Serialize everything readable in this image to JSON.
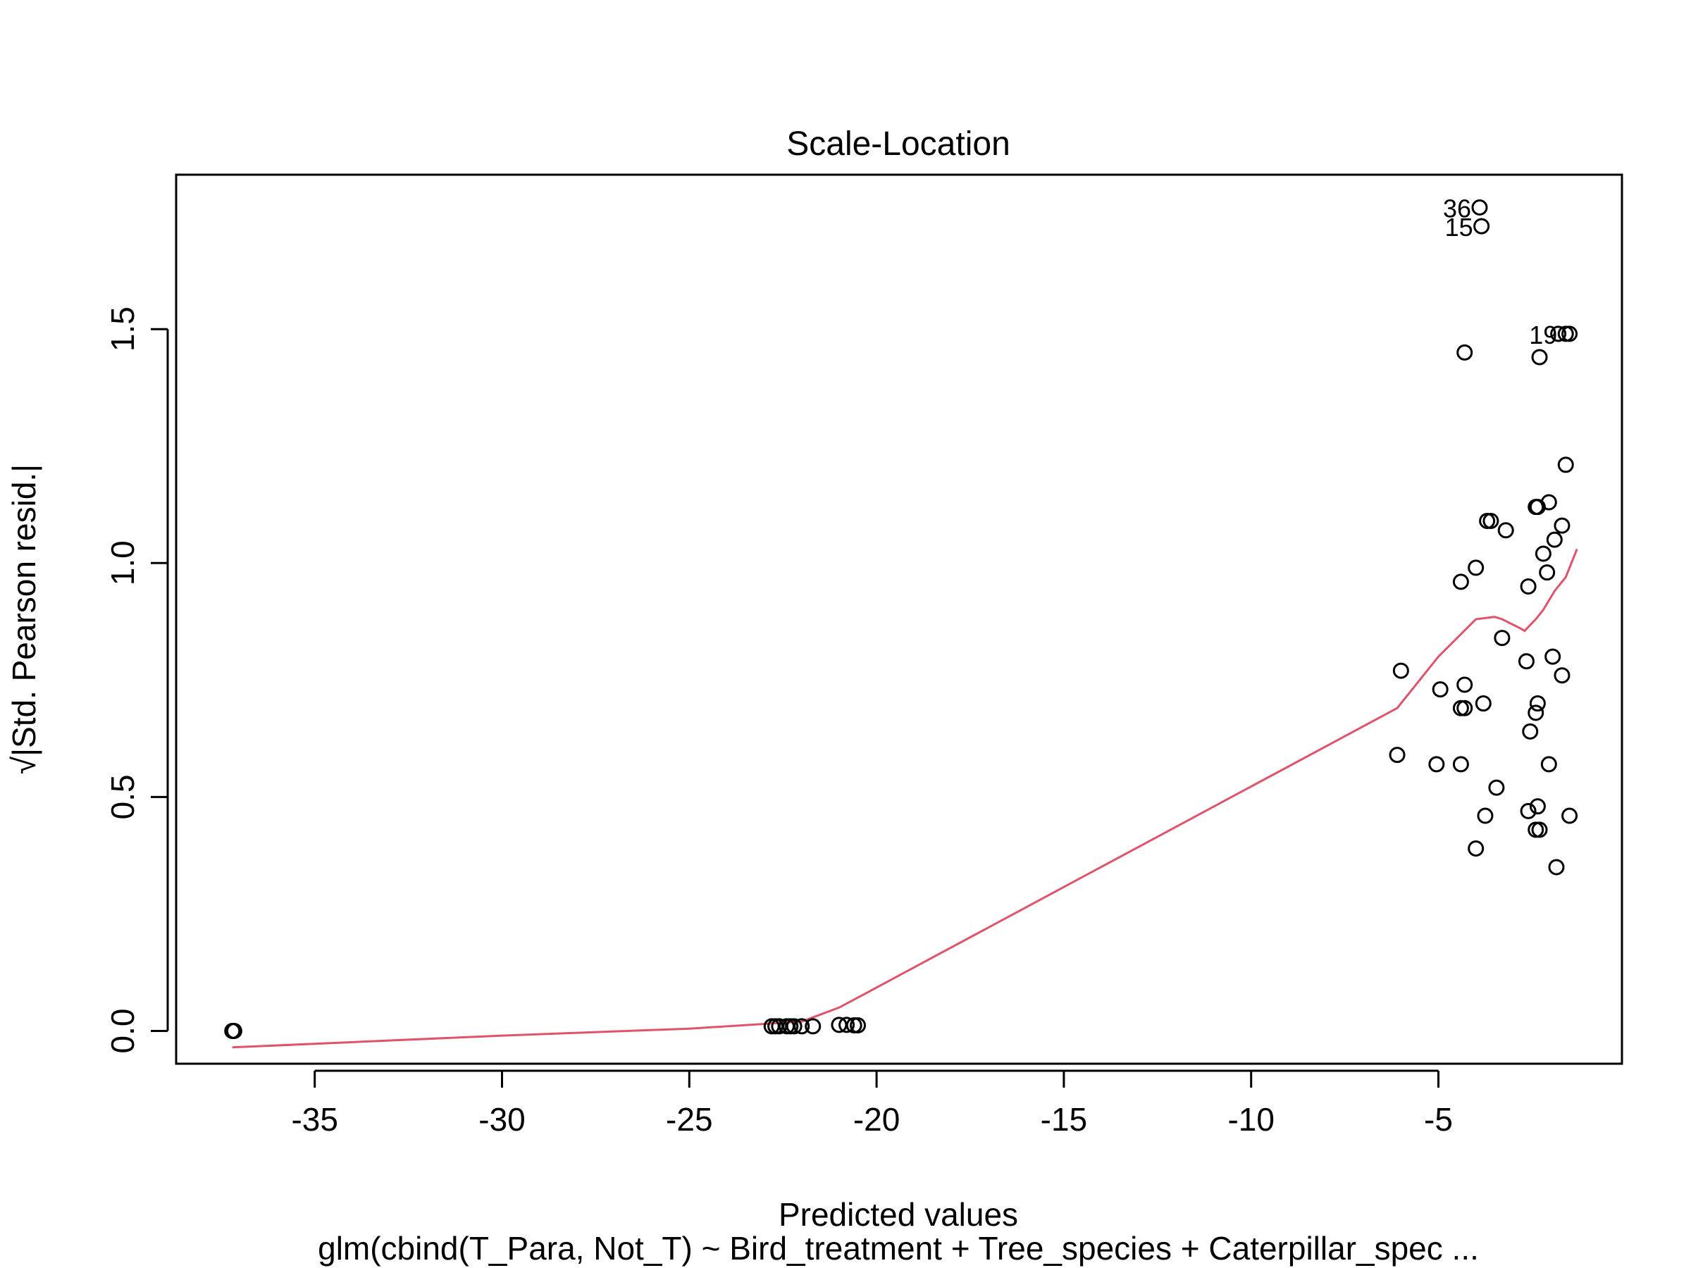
{
  "chart_data": {
    "type": "scatter",
    "title": "Scale-Location",
    "xlabel": "Predicted values",
    "ylabel": "√|Std. Pearson resid.|",
    "subtitle": "glm(cbind(T_Para, Not_T) ~ Bird_treatment + Tree_species + Caterpillar_spec ...",
    "xlim": [
      -38.7,
      -0.1
    ],
    "ylim": [
      -0.07,
      1.83
    ],
    "x_ticks": [
      -35,
      -30,
      -25,
      -20,
      -15,
      -10,
      -5
    ],
    "x_tick_labels": [
      "-35",
      "-30",
      "-25",
      "-20",
      "-15",
      "-10",
      "-5"
    ],
    "y_ticks": [
      0.0,
      0.5,
      1.0,
      1.5
    ],
    "y_tick_labels": [
      "0.0",
      "0.5",
      "1.0",
      "1.5"
    ],
    "grid": false,
    "legend": "none",
    "point_color": "#000000",
    "smooth_color": "#DF536B",
    "points": [
      {
        "x": -37.2,
        "y": 0.0
      },
      {
        "x": -37.15,
        "y": 0.0
      },
      {
        "x": -22.8,
        "y": 0.01
      },
      {
        "x": -22.7,
        "y": 0.01
      },
      {
        "x": -22.6,
        "y": 0.01
      },
      {
        "x": -22.4,
        "y": 0.01
      },
      {
        "x": -22.3,
        "y": 0.01
      },
      {
        "x": -22.2,
        "y": 0.01
      },
      {
        "x": -22.0,
        "y": 0.01
      },
      {
        "x": -21.7,
        "y": 0.01
      },
      {
        "x": -21.0,
        "y": 0.013
      },
      {
        "x": -20.8,
        "y": 0.013
      },
      {
        "x": -20.6,
        "y": 0.012
      },
      {
        "x": -20.5,
        "y": 0.012
      },
      {
        "x": -3.9,
        "y": 1.76,
        "label": "36"
      },
      {
        "x": -3.85,
        "y": 1.72,
        "label": "15"
      },
      {
        "x": -1.6,
        "y": 1.49,
        "label": "19"
      },
      {
        "x": -1.5,
        "y": 1.49
      },
      {
        "x": -1.8,
        "y": 1.49
      },
      {
        "x": -4.3,
        "y": 1.45
      },
      {
        "x": -2.3,
        "y": 1.44
      },
      {
        "x": -1.6,
        "y": 1.21
      },
      {
        "x": -2.05,
        "y": 1.13
      },
      {
        "x": -2.4,
        "y": 1.12
      },
      {
        "x": -2.35,
        "y": 1.12
      },
      {
        "x": -3.7,
        "y": 1.09
      },
      {
        "x": -3.6,
        "y": 1.09
      },
      {
        "x": -1.7,
        "y": 1.08
      },
      {
        "x": -3.2,
        "y": 1.07
      },
      {
        "x": -1.9,
        "y": 1.05
      },
      {
        "x": -2.2,
        "y": 1.02
      },
      {
        "x": -4.0,
        "y": 0.99
      },
      {
        "x": -2.1,
        "y": 0.98
      },
      {
        "x": -4.4,
        "y": 0.96
      },
      {
        "x": -2.6,
        "y": 0.95
      },
      {
        "x": -3.3,
        "y": 0.84
      },
      {
        "x": -1.95,
        "y": 0.8
      },
      {
        "x": -2.65,
        "y": 0.79
      },
      {
        "x": -6.0,
        "y": 0.77
      },
      {
        "x": -1.7,
        "y": 0.76
      },
      {
        "x": -4.3,
        "y": 0.74
      },
      {
        "x": -4.95,
        "y": 0.73
      },
      {
        "x": -2.35,
        "y": 0.7
      },
      {
        "x": -3.8,
        "y": 0.7
      },
      {
        "x": -4.4,
        "y": 0.69
      },
      {
        "x": -4.3,
        "y": 0.69
      },
      {
        "x": -2.4,
        "y": 0.68
      },
      {
        "x": -2.55,
        "y": 0.64
      },
      {
        "x": -6.1,
        "y": 0.59
      },
      {
        "x": -5.05,
        "y": 0.57
      },
      {
        "x": -4.4,
        "y": 0.57
      },
      {
        "x": -2.05,
        "y": 0.57
      },
      {
        "x": -3.45,
        "y": 0.52
      },
      {
        "x": -2.35,
        "y": 0.48
      },
      {
        "x": -2.6,
        "y": 0.47
      },
      {
        "x": -3.75,
        "y": 0.46
      },
      {
        "x": -1.5,
        "y": 0.46
      },
      {
        "x": -2.4,
        "y": 0.43
      },
      {
        "x": -2.3,
        "y": 0.43
      },
      {
        "x": -4.0,
        "y": 0.39
      },
      {
        "x": -1.85,
        "y": 0.35
      }
    ],
    "smooth_line": [
      {
        "x": -37.2,
        "y": -0.035
      },
      {
        "x": -30.0,
        "y": -0.01
      },
      {
        "x": -25.0,
        "y": 0.005
      },
      {
        "x": -22.0,
        "y": 0.02
      },
      {
        "x": -21.0,
        "y": 0.05
      },
      {
        "x": -20.3,
        "y": 0.08
      },
      {
        "x": -6.1,
        "y": 0.69
      },
      {
        "x": -5.0,
        "y": 0.8
      },
      {
        "x": -4.5,
        "y": 0.84
      },
      {
        "x": -4.0,
        "y": 0.88
      },
      {
        "x": -3.5,
        "y": 0.885
      },
      {
        "x": -3.3,
        "y": 0.88
      },
      {
        "x": -2.8,
        "y": 0.86
      },
      {
        "x": -2.7,
        "y": 0.855
      },
      {
        "x": -2.4,
        "y": 0.88
      },
      {
        "x": -2.2,
        "y": 0.9
      },
      {
        "x": -1.9,
        "y": 0.94
      },
      {
        "x": -1.6,
        "y": 0.97
      },
      {
        "x": -1.3,
        "y": 1.03
      }
    ]
  }
}
